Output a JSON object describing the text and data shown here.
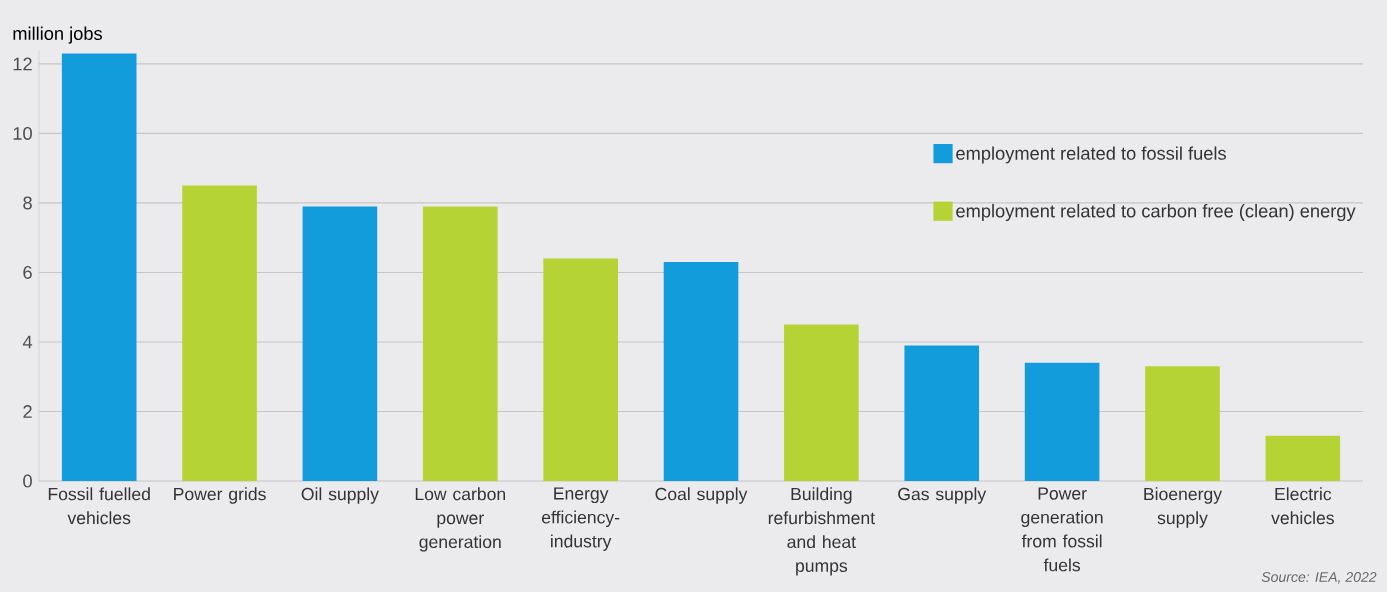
{
  "chart_data": {
    "type": "bar",
    "ylabel": "million jobs",
    "categories": [
      "Fossil fuelled vehicles",
      "Power grids",
      "Oil supply",
      "Low carbon power generation",
      "Energy efficiency-industry",
      "Coal supply",
      "Building refurbishment and heat pumps",
      "Gas supply",
      "Power generation from fossil fuels",
      "Bioenergy supply",
      "Electric vehicles"
    ],
    "series": [
      {
        "name": "employment related to fossil fuels",
        "color": "#139cdb",
        "values": [
          12.3,
          null,
          7.9,
          null,
          null,
          6.3,
          null,
          3.9,
          3.4,
          null,
          null
        ]
      },
      {
        "name": "employment related to carbon free (clean) energy",
        "color": "#b5d334",
        "values": [
          null,
          8.5,
          null,
          7.9,
          6.4,
          null,
          4.5,
          null,
          null,
          3.3,
          1.3
        ]
      }
    ],
    "ylim": [
      0,
      12.4
    ],
    "yticks": [
      0,
      2,
      4,
      6,
      8,
      10,
      12
    ],
    "grid": "y",
    "legend": "right",
    "annotations": [
      "Source: IEA, 2022"
    ]
  }
}
